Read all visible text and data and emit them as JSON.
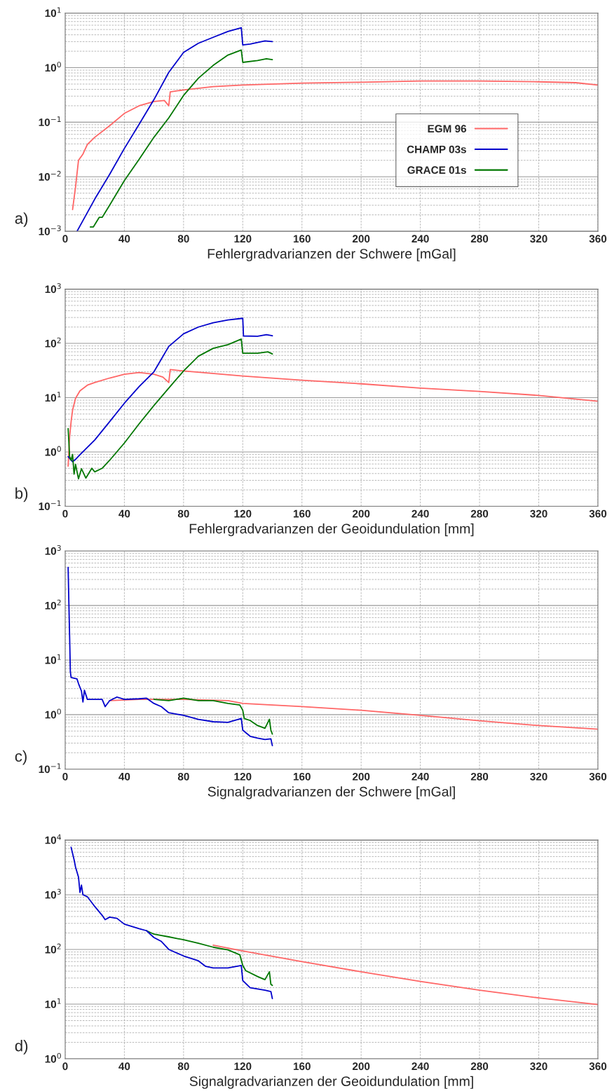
{
  "chart_data": [
    {
      "type": "line",
      "xlabel": "Fehlergradvarianzen der Schwere [mGal]",
      "annotations": [
        "a)"
      ],
      "log": "y",
      "grid": true,
      "legend": "lower right",
      "xlim": [
        0,
        360
      ],
      "xticks": [
        0,
        40,
        80,
        120,
        160,
        200,
        240,
        280,
        320,
        360
      ],
      "ylim": [
        0.001,
        10
      ],
      "yticks": [
        {
          "value": 0.001,
          "label": "10$^{−3}$"
        },
        {
          "value": 0.01,
          "label": "10$^{−2}$"
        },
        {
          "value": 0.1,
          "label": "10$^{−1}$"
        },
        {
          "value": 1,
          "label": "10$^{0}$"
        },
        {
          "value": 10,
          "label": "10$^{1}$"
        }
      ],
      "series": [
        {
          "name": "EGM 96",
          "color": "#ff6666",
          "x": [
            5,
            7,
            9,
            12,
            15,
            20,
            30,
            40,
            50,
            60,
            67,
            70,
            71,
            80,
            100,
            120,
            160,
            200,
            240,
            280,
            320,
            345,
            360
          ],
          "values": [
            0.0025,
            0.0065,
            0.02,
            0.026,
            0.039,
            0.053,
            0.086,
            0.145,
            0.2,
            0.24,
            0.25,
            0.2,
            0.36,
            0.39,
            0.45,
            0.48,
            0.52,
            0.54,
            0.57,
            0.57,
            0.55,
            0.53,
            0.48
          ]
        },
        {
          "name": "CHAMP 03s",
          "color": "#0000cc",
          "x": [
            8,
            20,
            30,
            40,
            50,
            60,
            70,
            80,
            90,
            100,
            110,
            119,
            120,
            125,
            135,
            140
          ],
          "values": [
            0.001,
            0.0039,
            0.011,
            0.033,
            0.092,
            0.26,
            0.82,
            1.9,
            2.8,
            3.6,
            4.6,
            5.4,
            2.6,
            2.7,
            3.1,
            3.0
          ]
        },
        {
          "name": "GRACE 01s",
          "color": "#007700",
          "x": [
            17,
            19,
            23,
            25,
            30,
            40,
            50,
            60,
            70,
            80,
            90,
            100,
            110,
            119,
            120,
            130,
            136,
            140
          ],
          "values": [
            0.0012,
            0.0012,
            0.0018,
            0.0018,
            0.003,
            0.0085,
            0.021,
            0.053,
            0.12,
            0.31,
            0.64,
            1.1,
            1.7,
            2.1,
            1.25,
            1.35,
            1.45,
            1.4
          ]
        }
      ]
    },
    {
      "type": "line",
      "xlabel": "Fehlergradvarianzen der Geoidundulation [mm]",
      "annotations": [
        "b)"
      ],
      "log": "y",
      "grid": true,
      "xlim": [
        0,
        360
      ],
      "xticks": [
        0,
        40,
        80,
        120,
        160,
        200,
        240,
        280,
        320,
        360
      ],
      "ylim": [
        0.1,
        1000
      ],
      "yticks": [
        {
          "value": 0.1,
          "label": "10$^{−1}$"
        },
        {
          "value": 1,
          "label": "10$^{0}$"
        },
        {
          "value": 10,
          "label": "10$^{1}$"
        },
        {
          "value": 100,
          "label": "10$^{2}$"
        },
        {
          "value": 1000,
          "label": "10$^{3}$"
        }
      ],
      "series": [
        {
          "color": "#ff6666",
          "x": [
            2,
            3,
            4,
            5,
            7,
            10,
            15,
            20,
            30,
            40,
            50,
            60,
            66,
            70,
            71,
            80,
            120,
            160,
            200,
            240,
            280,
            320,
            360
          ],
          "values": [
            0.55,
            1.9,
            3.6,
            5.9,
            9.7,
            13.4,
            17,
            19,
            23,
            27,
            29,
            27,
            24,
            19,
            33,
            31,
            25,
            21,
            18,
            15,
            13,
            11,
            8.6
          ]
        },
        {
          "color": "#0000cc",
          "x": [
            2,
            5,
            7,
            10,
            20,
            30,
            40,
            50,
            60,
            70,
            80,
            90,
            100,
            110,
            120,
            120.5,
            130,
            136,
            140
          ],
          "values": [
            0.82,
            0.66,
            0.73,
            0.89,
            1.66,
            3.6,
            7.9,
            16,
            30,
            88,
            150,
            200,
            240,
            270,
            290,
            137,
            135,
            145,
            138
          ]
        },
        {
          "color": "#007700",
          "x": [
            2,
            3,
            4,
            5,
            6,
            7,
            9,
            11,
            14,
            18,
            20,
            25,
            30,
            40,
            50,
            60,
            70,
            80,
            90,
            100,
            110,
            119,
            120,
            130,
            137,
            140
          ],
          "values": [
            2.7,
            0.82,
            0.7,
            0.9,
            0.39,
            0.59,
            0.32,
            0.49,
            0.33,
            0.5,
            0.43,
            0.5,
            0.7,
            1.46,
            3.3,
            7.2,
            15,
            31,
            58,
            81,
            95,
            120,
            66,
            66,
            70,
            64
          ]
        }
      ]
    },
    {
      "type": "line",
      "xlabel": "Signalgradvarianzen der Schwere [mGal]",
      "annotations": [
        "c)"
      ],
      "log": "y",
      "grid": true,
      "xlim": [
        0,
        360
      ],
      "xticks": [
        0,
        40,
        80,
        120,
        160,
        200,
        240,
        280,
        320,
        360
      ],
      "ylim": [
        0.1,
        1000
      ],
      "yticks": [
        {
          "value": 0.1,
          "label": "10$^{−1}$"
        },
        {
          "value": 1,
          "label": "10$^{0}$"
        },
        {
          "value": 10,
          "label": "10$^{1}$"
        },
        {
          "value": 100,
          "label": "10$^{2}$"
        },
        {
          "value": 1000,
          "label": "10$^{3}$"
        }
      ],
      "series": [
        {
          "color": "#ff6666",
          "x": [
            30,
            50,
            80,
            110,
            120,
            160,
            200,
            240,
            280,
            320,
            360
          ],
          "values": [
            1.8,
            1.9,
            1.9,
            1.8,
            1.6,
            1.4,
            1.2,
            0.97,
            0.77,
            0.63,
            0.54
          ]
        },
        {
          "color": "#007700",
          "x": [
            60,
            70,
            80,
            90,
            100,
            110,
            118,
            120,
            121,
            125,
            130,
            135,
            138,
            139,
            140
          ],
          "values": [
            1.9,
            1.8,
            2.0,
            1.8,
            1.8,
            1.6,
            1.5,
            1.2,
            0.85,
            0.78,
            0.63,
            0.56,
            0.82,
            0.52,
            0.44
          ]
        },
        {
          "color": "#0000cc",
          "x": [
            2,
            2.5,
            3,
            3.5,
            4,
            8,
            9,
            11,
            12,
            13,
            15,
            20,
            25,
            27,
            30,
            35,
            40,
            50,
            55,
            60,
            65,
            70,
            80,
            90,
            100,
            110,
            119,
            120,
            125,
            130,
            135,
            139,
            140
          ],
          "values": [
            500,
            110,
            27,
            6.1,
            4.8,
            4.5,
            3.7,
            2.7,
            1.7,
            2.8,
            1.9,
            1.9,
            1.9,
            1.4,
            1.8,
            2.1,
            1.9,
            1.95,
            2.0,
            1.6,
            1.4,
            1.08,
            0.97,
            0.82,
            0.74,
            0.72,
            0.85,
            0.52,
            0.4,
            0.37,
            0.35,
            0.36,
            0.27
          ]
        }
      ]
    },
    {
      "type": "line",
      "xlabel": "Signalgradvarianzen der Geoidundulation [mm]",
      "annotations": [
        "d)"
      ],
      "log": "y",
      "grid": true,
      "xlim": [
        0,
        360
      ],
      "xticks": [
        0,
        40,
        80,
        120,
        160,
        200,
        240,
        280,
        320,
        360
      ],
      "ylim": [
        1,
        10000
      ],
      "yticks": [
        {
          "value": 1,
          "label": "10$^{0}$"
        },
        {
          "value": 10,
          "label": "10$^{1}$"
        },
        {
          "value": 100,
          "label": "10$^{2}$"
        },
        {
          "value": 1000,
          "label": "10$^{3}$"
        },
        {
          "value": 10000,
          "label": "10$^{4}$"
        }
      ],
      "series": [
        {
          "color": "#ff6666",
          "x": [
            100,
            120,
            160,
            200,
            240,
            280,
            320,
            360
          ],
          "values": [
            120,
            94,
            60,
            39,
            26,
            18,
            13,
            9.8
          ]
        },
        {
          "color": "#007700",
          "x": [
            55,
            60,
            70,
            80,
            90,
            100,
            110,
            118,
            120,
            122,
            130,
            135,
            138,
            139,
            140
          ],
          "values": [
            220,
            190,
            170,
            150,
            130,
            110,
            98,
            80,
            51,
            41,
            32,
            28,
            39,
            23,
            22
          ]
        },
        {
          "color": "#0000cc",
          "x": [
            4,
            6,
            7,
            9,
            10,
            11,
            12,
            15,
            20,
            25,
            27,
            30,
            35,
            40,
            50,
            55,
            60,
            65,
            70,
            80,
            90,
            95,
            100,
            110,
            119,
            120,
            125,
            130,
            135,
            139,
            140
          ],
          "values": [
            7400,
            4400,
            3200,
            2100,
            1100,
            1500,
            1000,
            920,
            610,
            420,
            350,
            390,
            370,
            290,
            240,
            220,
            165,
            140,
            100,
            76,
            62,
            49,
            46,
            46,
            51,
            27,
            20,
            19,
            18,
            17,
            12.6
          ]
        }
      ]
    }
  ]
}
